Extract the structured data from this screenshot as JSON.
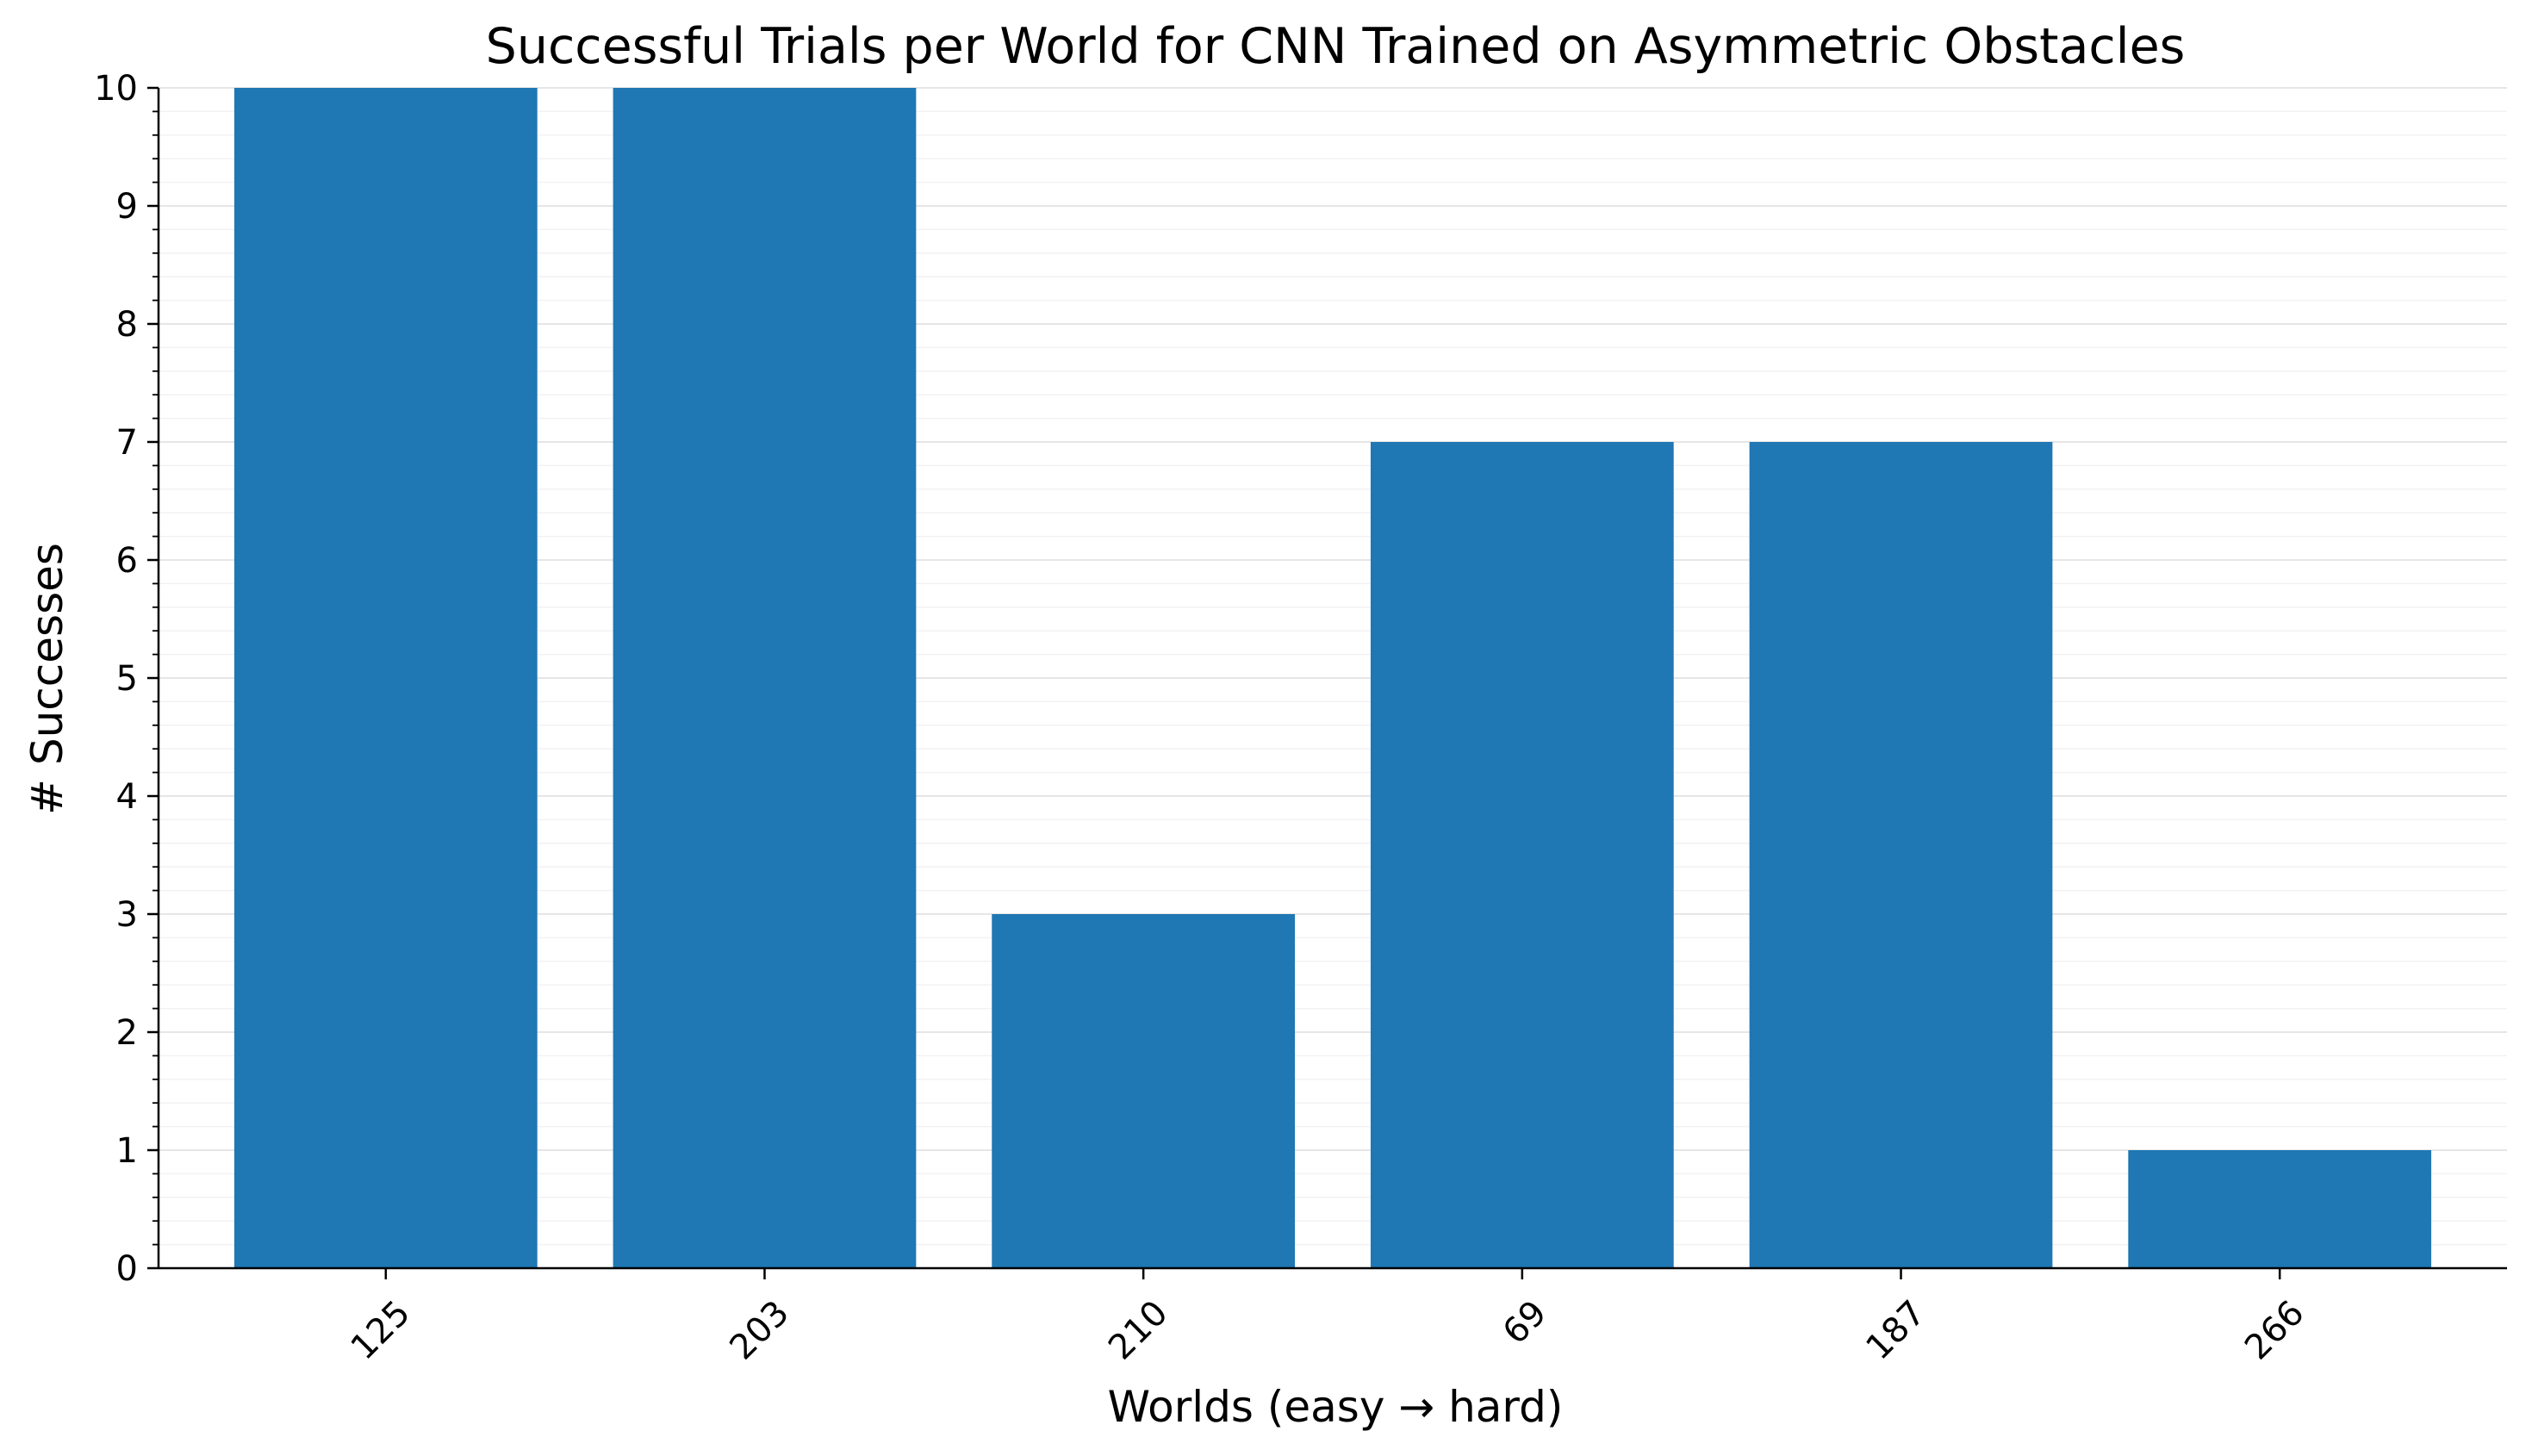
{
  "chart_data": {
    "type": "bar",
    "title": "Successful Trials per World for CNN Trained on Asymmetric Obstacles",
    "xlabel": "Worlds (easy → hard)",
    "ylabel": "# Successes",
    "categories": [
      "125",
      "203",
      "210",
      "69",
      "187",
      "266"
    ],
    "values": [
      10,
      10,
      3,
      7,
      7,
      1
    ],
    "ylim": [
      0,
      10
    ],
    "yticks": [
      0,
      1,
      2,
      3,
      4,
      5,
      6,
      7,
      8,
      9,
      10
    ],
    "y_minor_step": 0.2,
    "grid": "horizontal",
    "bar_color": "#1f77b4",
    "x_tick_rotation": "45° counter-clockwise"
  }
}
